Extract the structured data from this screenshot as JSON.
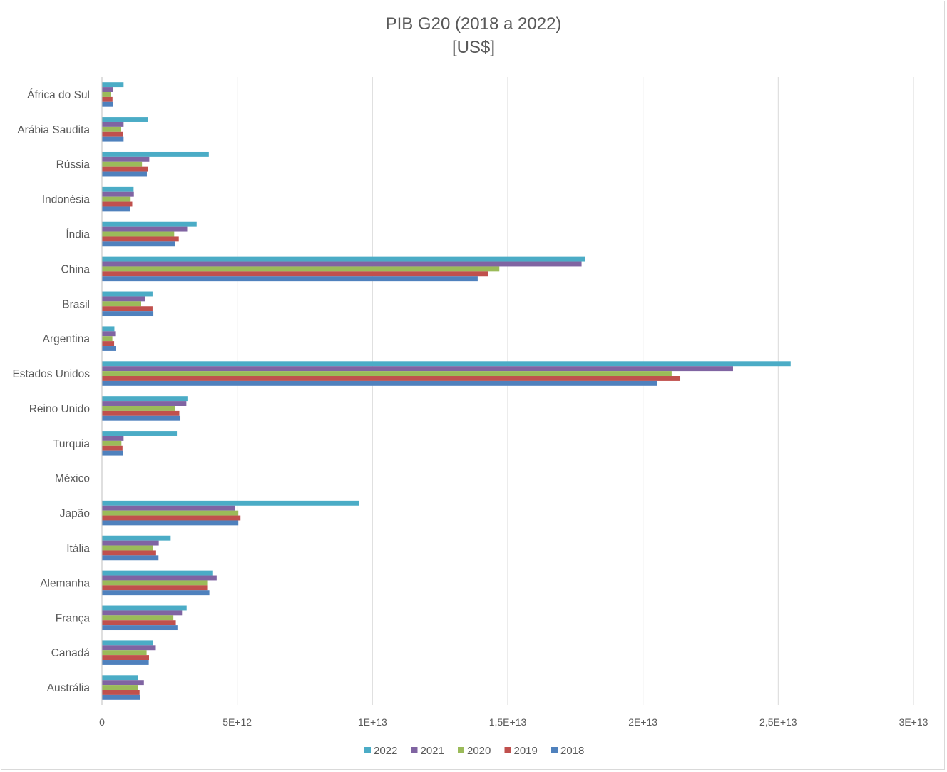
{
  "chart_data": {
    "type": "bar",
    "orientation": "horizontal",
    "title": "PIB G20 (2018 a 2022)",
    "subtitle": "[US$]",
    "categories": [
      "África do Sul",
      "Arábia Saudita",
      "Rússia",
      "Indonésia",
      "Índia",
      "China",
      "Brasil",
      "Argentina",
      "Estados Unidos",
      "Reino Unido",
      "Turquia",
      "México",
      "Japão",
      "Itália",
      "Alemanha",
      "França",
      "Canadá",
      "Austrália"
    ],
    "series": [
      {
        "name": "2022",
        "color": "#4bacc6",
        "values": [
          800000000000.0,
          1700000000000.0,
          3950000000000.0,
          1170000000000.0,
          3500000000000.0,
          17870000000000.0,
          1870000000000.0,
          460000000000.0,
          25460000000000.0,
          3160000000000.0,
          2770000000000.0,
          0,
          9500000000000.0,
          2540000000000.0,
          4080000000000.0,
          3130000000000.0,
          1880000000000.0,
          1340000000000.0
        ]
      },
      {
        "name": "2021",
        "color": "#8064a2",
        "values": [
          420000000000.0,
          800000000000.0,
          1750000000000.0,
          1180000000000.0,
          3150000000000.0,
          17730000000000.0,
          1600000000000.0,
          490000000000.0,
          23330000000000.0,
          3120000000000.0,
          800000000000.0,
          0,
          4930000000000.0,
          2100000000000.0,
          4240000000000.0,
          2960000000000.0,
          1990000000000.0,
          1550000000000.0
        ]
      },
      {
        "name": "2020",
        "color": "#9bbb59",
        "values": [
          340000000000.0,
          700000000000.0,
          1480000000000.0,
          1060000000000.0,
          2670000000000.0,
          14690000000000.0,
          1450000000000.0,
          385000000000.0,
          21060000000000.0,
          2690000000000.0,
          720000000000.0,
          0,
          5040000000000.0,
          1890000000000.0,
          3890000000000.0,
          2640000000000.0,
          1650000000000.0,
          1330000000000.0
        ]
      },
      {
        "name": "2019",
        "color": "#c0504d",
        "values": [
          390000000000.0,
          790000000000.0,
          1690000000000.0,
          1120000000000.0,
          2840000000000.0,
          14280000000000.0,
          1870000000000.0,
          450000000000.0,
          21380000000000.0,
          2860000000000.0,
          760000000000.0,
          0,
          5120000000000.0,
          2000000000000.0,
          3890000000000.0,
          2730000000000.0,
          1740000000000.0,
          1390000000000.0
        ]
      },
      {
        "name": "2018",
        "color": "#4f81bd",
        "values": [
          400000000000.0,
          800000000000.0,
          1660000000000.0,
          1040000000000.0,
          2700000000000.0,
          13890000000000.0,
          1900000000000.0,
          520000000000.0,
          20530000000000.0,
          2900000000000.0,
          780000000000.0,
          0,
          5040000000000.0,
          2090000000000.0,
          3970000000000.0,
          2790000000000.0,
          1730000000000.0,
          1420000000000.0
        ]
      }
    ],
    "xlim": [
      0,
      30000000000000.0
    ],
    "xticks": [
      0,
      5000000000000.0,
      10000000000000.0,
      15000000000000.0,
      20000000000000.0,
      25000000000000.0,
      30000000000000.0
    ],
    "xtick_labels": [
      "0",
      "5E+12",
      "1E+13",
      "1,5E+13",
      "2E+13",
      "2,5E+13",
      "3E+13"
    ],
    "grid": true,
    "legend_position": "bottom",
    "legend_order": [
      "2022",
      "2021",
      "2020",
      "2019",
      "2018"
    ]
  }
}
